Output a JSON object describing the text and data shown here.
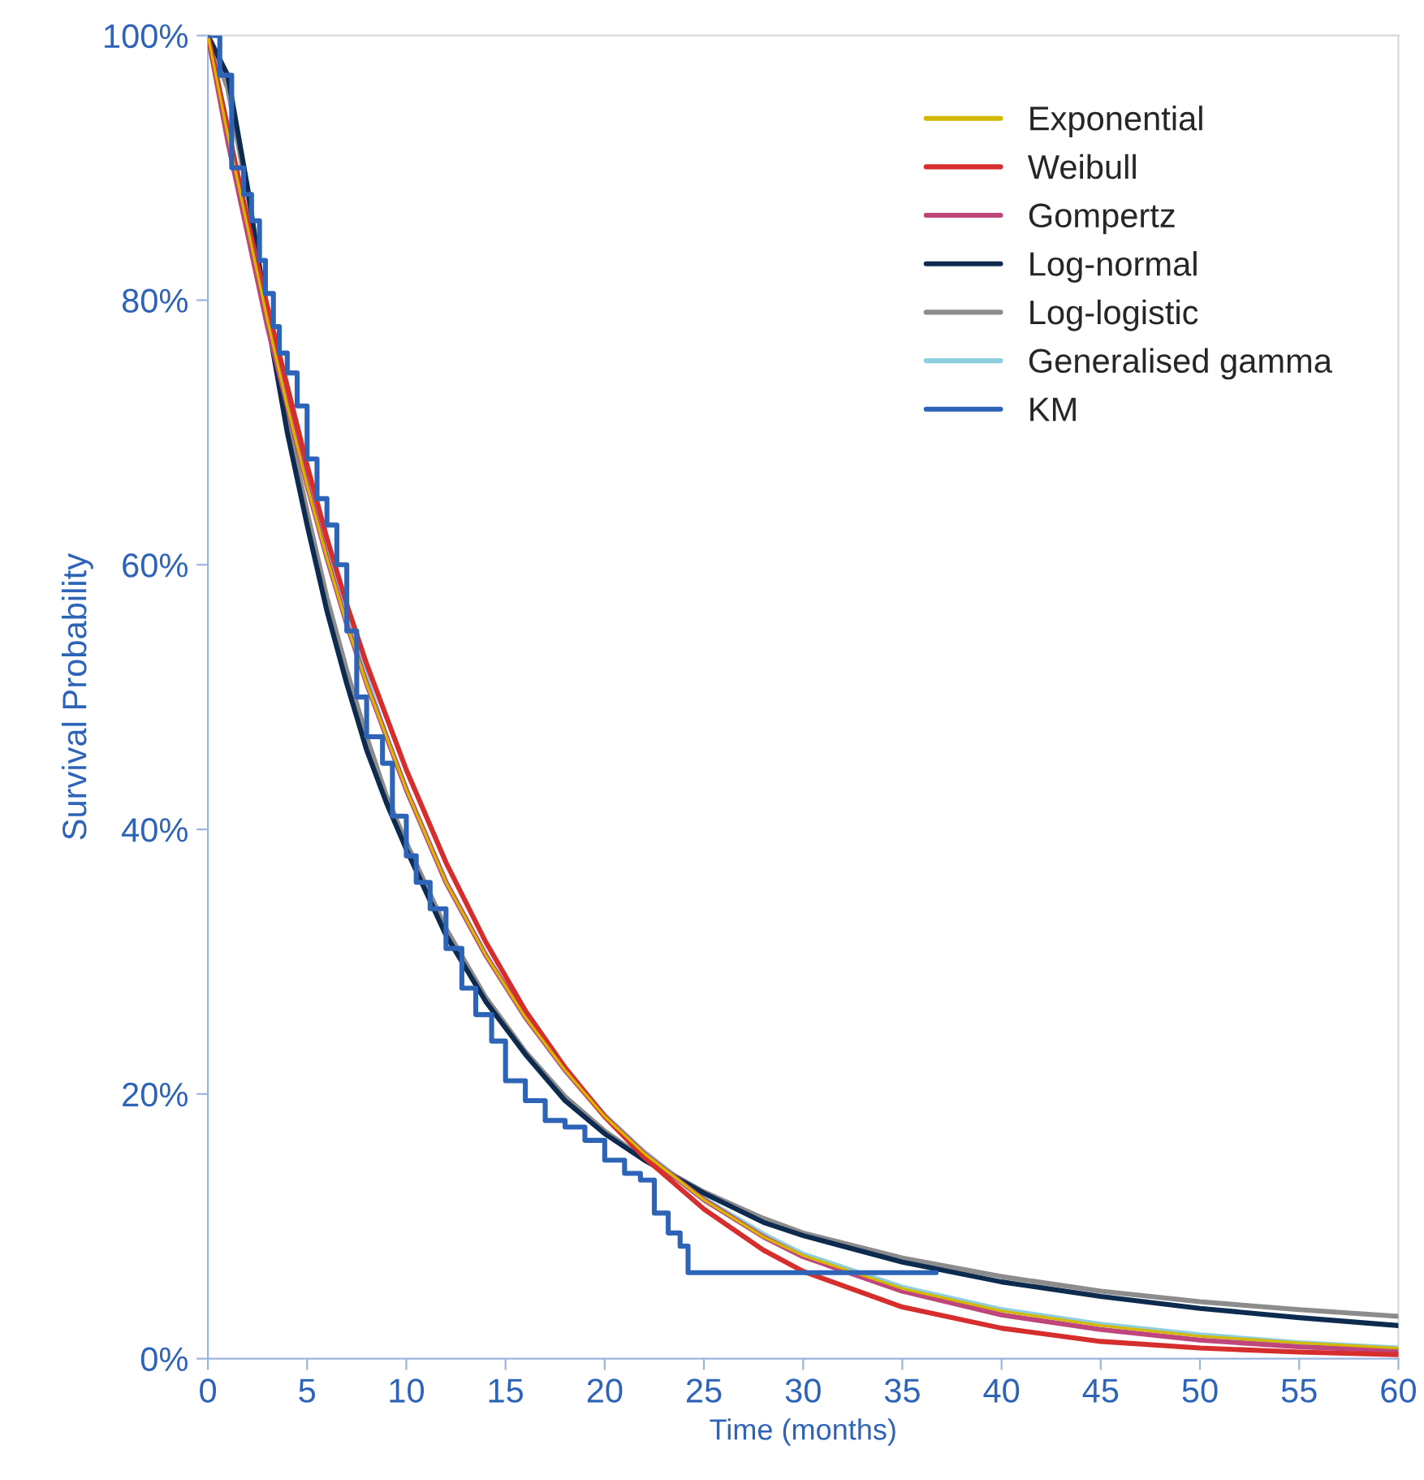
{
  "chart_data": {
    "type": "line",
    "xlabel": "Time (months)",
    "ylabel": "Survival Probability",
    "x": [
      0,
      1,
      2,
      3,
      4,
      5,
      6,
      7,
      8,
      9,
      10,
      12,
      14,
      16,
      18,
      20,
      22,
      25,
      28,
      30,
      35,
      40,
      45,
      50,
      55,
      60
    ],
    "series": [
      {
        "name": "Exponential",
        "color": "#d4b800",
        "values": [
          100,
          92.5,
          85.5,
          78.5,
          72,
          66,
          60.5,
          55.5,
          51,
          47,
          43,
          36,
          30.5,
          25.8,
          21.8,
          18.3,
          15.5,
          12,
          9.2,
          7.8,
          5.3,
          3.6,
          2.5,
          1.7,
          1.2,
          0.8
        ]
      },
      {
        "name": "Weibull",
        "color": "#d62d2d",
        "values": [
          100,
          93,
          86,
          79.5,
          73.5,
          67.5,
          62,
          57,
          52.5,
          48.5,
          44.5,
          37.5,
          31.5,
          26.3,
          22,
          18.3,
          15.2,
          11.3,
          8.2,
          6.6,
          3.9,
          2.3,
          1.3,
          0.8,
          0.5,
          0.3
        ]
      },
      {
        "name": "Gompertz",
        "color": "#c0457a",
        "values": [
          100,
          92,
          85,
          78,
          72,
          66,
          60.5,
          55.5,
          51,
          47,
          43,
          36,
          30.5,
          25.8,
          21.8,
          18.3,
          15.5,
          12,
          9.2,
          7.7,
          5.1,
          3.3,
          2.2,
          1.4,
          0.9,
          0.6
        ]
      },
      {
        "name": "Log-normal",
        "color": "#0d2a4f",
        "values": [
          100,
          97,
          88.5,
          78.5,
          70,
          63,
          56.5,
          51,
          46,
          42,
          38.5,
          32,
          27,
          23,
          19.5,
          17,
          15,
          12.5,
          10.3,
          9.3,
          7.3,
          5.8,
          4.7,
          3.8,
          3.1,
          2.5
        ]
      },
      {
        "name": "Log-logistic",
        "color": "#8c8c8c",
        "values": [
          100,
          96,
          88,
          79,
          71,
          64,
          57.5,
          52,
          47,
          42.5,
          39,
          32.5,
          27.3,
          23.2,
          19.8,
          17.2,
          15.1,
          12.6,
          10.6,
          9.5,
          7.6,
          6.2,
          5.1,
          4.3,
          3.7,
          3.2
        ]
      },
      {
        "name": "Generalised gamma",
        "color": "#8ecfdf",
        "values": [
          100,
          93,
          86,
          79,
          73,
          67,
          61.5,
          56,
          51.5,
          47,
          43,
          36,
          30.5,
          25.8,
          21.8,
          18.4,
          15.6,
          12.1,
          9.4,
          7.9,
          5.4,
          3.7,
          2.6,
          1.8,
          1.2,
          0.8
        ]
      },
      {
        "name": "KM",
        "color": "#2e64b8",
        "type": "step",
        "x": [
          0,
          0.6,
          1.2,
          1.8,
          2.2,
          2.6,
          2.9,
          3.3,
          3.6,
          4.0,
          4.5,
          5.0,
          5.5,
          6.0,
          6.5,
          7.0,
          7.5,
          8.0,
          8.8,
          9.3,
          10.0,
          10.5,
          11.2,
          12.0,
          12.8,
          13.5,
          14.3,
          15.0,
          16.0,
          17.0,
          18.0,
          19.0,
          20.0,
          21.0,
          21.8,
          22.5,
          23.2,
          23.8,
          24.2,
          36.7
        ],
        "values": [
          100,
          97,
          90,
          88,
          86,
          83,
          80.5,
          78,
          76,
          74.5,
          72,
          68,
          65,
          63,
          60,
          55,
          50,
          47,
          45,
          41,
          38,
          36,
          34,
          31,
          28,
          26,
          24,
          21,
          19.5,
          18,
          17.5,
          16.5,
          15,
          14,
          13.5,
          11,
          9.5,
          8.5,
          6.5,
          6.5
        ]
      }
    ],
    "xlim": [
      0,
      60
    ],
    "xticks": [
      0,
      5,
      10,
      15,
      20,
      25,
      30,
      35,
      40,
      45,
      50,
      55,
      60
    ],
    "ylim": [
      0,
      100
    ],
    "yticks": [
      {
        "value": 0,
        "label": "0%"
      },
      {
        "value": 20,
        "label": "20%"
      },
      {
        "value": 40,
        "label": "40%"
      },
      {
        "value": 60,
        "label": "60%"
      },
      {
        "value": 80,
        "label": "80%"
      },
      {
        "value": 100,
        "label": "100%"
      }
    ],
    "grid": false,
    "legend": "top right",
    "marker": "none",
    "line_style": "solid"
  }
}
